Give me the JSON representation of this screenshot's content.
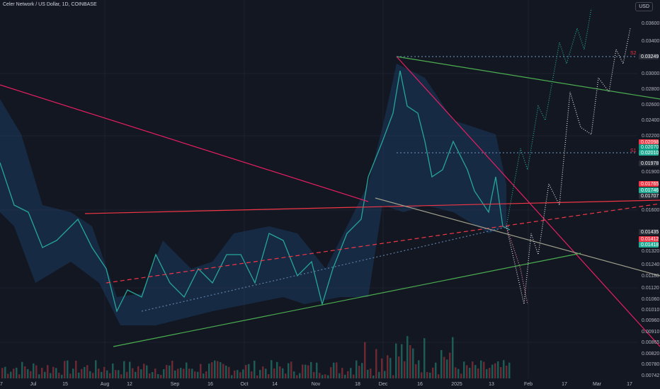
{
  "header": {
    "title": "Celer Network / US Dollar, 1D, COINBASE",
    "currency": "USD"
  },
  "price_axis": [
    "0.03600",
    "0.03400",
    "0.03000",
    "0.02800",
    "0.02600",
    "0.02400",
    "0.02200",
    "0.01900",
    "0.01600",
    "0.01320",
    "0.01240",
    "0.01180",
    "0.01120",
    "0.01060",
    "0.01010",
    "0.00960",
    "0.00910",
    "0.00865",
    "0.00820",
    "0.00780",
    "0.00742"
  ],
  "price_tags": [
    {
      "label": "0.03249",
      "color": "#2a2e39"
    },
    {
      "label": "0.02098",
      "color": "#f23645"
    },
    {
      "label": "0.02070",
      "color": "#089981"
    },
    {
      "label": "0.02010",
      "color": "#22ab94"
    },
    {
      "label": "0.01978",
      "color": "#2a2e39"
    },
    {
      "label": "0.01765",
      "color": "#f23645"
    },
    {
      "label": "0.01746",
      "color": "#22ab94"
    },
    {
      "label": "0.01707",
      "color": "#2a2e39"
    },
    {
      "label": "0.01435",
      "color": "#2a2e39"
    },
    {
      "label": "0.01412",
      "color": "#f23645"
    },
    {
      "label": "0.01418",
      "color": "#22ab94"
    }
  ],
  "levels": [
    "S1",
    "S2"
  ],
  "time_axis": [
    "7",
    "Jul",
    "15",
    "Aug",
    "12",
    "Sep",
    "16",
    "Oct",
    "14",
    "Nov",
    "18",
    "Dec",
    "16",
    "2025",
    "13",
    "Feb",
    "17",
    "Mar",
    "17"
  ]
}
